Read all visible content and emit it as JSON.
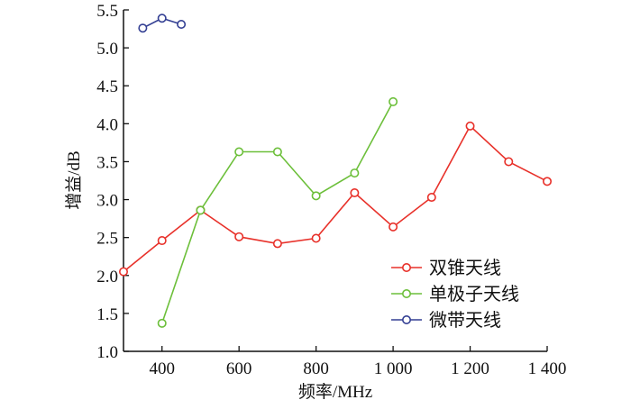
{
  "chart_data": {
    "type": "line",
    "title": "",
    "xlabel": "频率/MHz",
    "ylabel": "增益/dB",
    "xlim": [
      300,
      1400
    ],
    "ylim": [
      1.0,
      5.5
    ],
    "xticks": [
      400,
      600,
      800,
      1000,
      1200,
      1400
    ],
    "xtick_labels": [
      "400",
      "600",
      "800",
      "1 000",
      "1 200",
      "1 400"
    ],
    "yticks": [
      1.0,
      1.5,
      2.0,
      2.5,
      3.0,
      3.5,
      4.0,
      4.5,
      5.0,
      5.5
    ],
    "ytick_labels": [
      "1.0",
      "1.5",
      "2.0",
      "2.5",
      "3.0",
      "3.5",
      "4.0",
      "4.5",
      "5.0",
      "5.5"
    ],
    "grid": false,
    "legend_position": "bottom-right",
    "series": [
      {
        "name": "双锥天线",
        "color": "#e8312a",
        "x": [
          300,
          400,
          500,
          600,
          700,
          800,
          900,
          1000,
          1100,
          1200,
          1300,
          1400
        ],
        "y": [
          2.05,
          2.46,
          2.86,
          2.51,
          2.42,
          2.49,
          3.09,
          2.64,
          3.03,
          3.97,
          3.5,
          3.24
        ]
      },
      {
        "name": "单极子天线",
        "color": "#6cbf3a",
        "x": [
          400,
          500,
          600,
          700,
          800,
          900,
          1000
        ],
        "y": [
          1.37,
          2.86,
          3.63,
          3.63,
          3.05,
          3.35,
          4.29
        ]
      },
      {
        "name": "微带天线",
        "color": "#333f93",
        "x": [
          350,
          400,
          450
        ],
        "y": [
          5.26,
          5.39,
          5.31
        ]
      }
    ]
  }
}
